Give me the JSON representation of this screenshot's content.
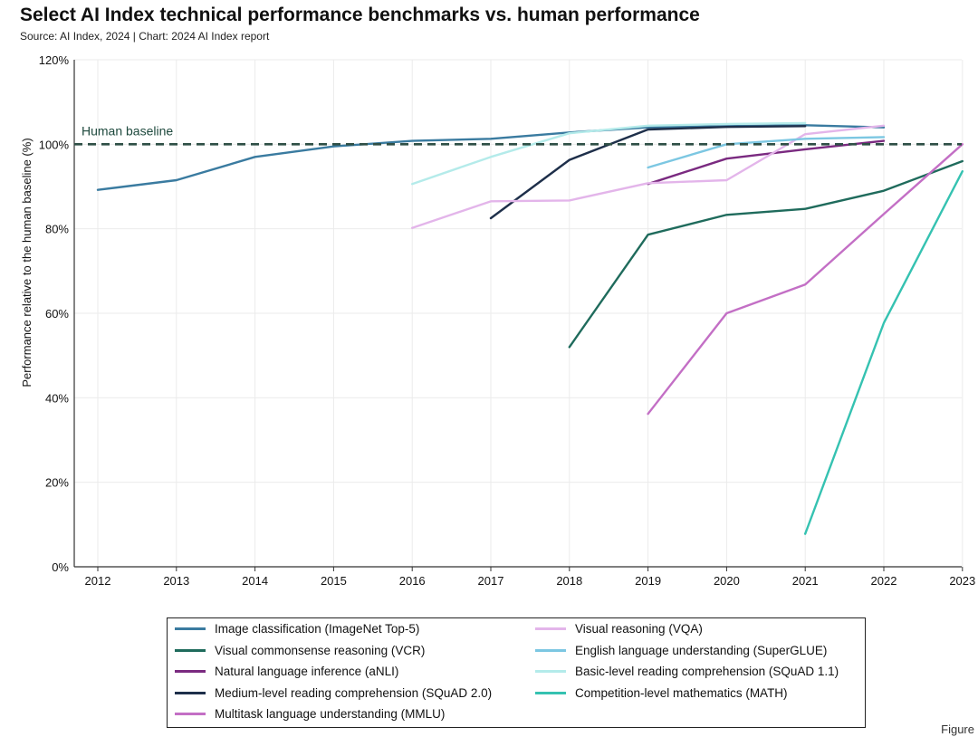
{
  "title": "Select AI Index technical performance benchmarks vs. human performance",
  "subtitle": "Source: AI Index, 2024 | Chart: 2024 AI Index report",
  "figure_label": "Figure",
  "chart_data": {
    "type": "line",
    "title": "Select AI Index technical performance benchmarks vs. human performance",
    "xlabel": "",
    "ylabel": "Performance relative to the human baseline (%)",
    "categories": [
      "2012",
      "2013",
      "2014",
      "2015",
      "2016",
      "2017",
      "2018",
      "2019",
      "2020",
      "2021",
      "2022",
      "2023"
    ],
    "y_ticks": [
      "0%",
      "20%",
      "40%",
      "60%",
      "80%",
      "100%",
      "120%"
    ],
    "ylim": [
      0,
      120
    ],
    "baseline": {
      "label": "Human baseline",
      "value": 100,
      "color": "#2f4f46"
    },
    "grid": true,
    "legend_position": "bottom",
    "series": [
      {
        "name": "Image classification (ImageNet Top-5)",
        "color": "#3a7ba0",
        "x": [
          2012,
          2013,
          2014,
          2015,
          2016,
          2017,
          2018,
          2019,
          2020,
          2021,
          2022
        ],
        "values": [
          89.2,
          91.5,
          97.0,
          99.5,
          100.8,
          101.3,
          102.8,
          104.0,
          104.3,
          104.5,
          104.0
        ]
      },
      {
        "name": "Visual commonsense reasoning (VCR)",
        "color": "#1f6b5c",
        "x": [
          2018,
          2019,
          2020,
          2021,
          2022,
          2023
        ],
        "values": [
          52.0,
          78.6,
          83.3,
          84.7,
          89.0,
          96.0
        ]
      },
      {
        "name": "Natural language inference (aNLI)",
        "color": "#7a2a80",
        "x": [
          2019,
          2020,
          2021,
          2022
        ],
        "values": [
          90.6,
          96.6,
          98.8,
          100.8
        ]
      },
      {
        "name": "Medium-level reading comprehension (SQuAD 2.0)",
        "color": "#1e2f4a",
        "x": [
          2017,
          2018,
          2019,
          2020,
          2021
        ],
        "values": [
          82.5,
          96.3,
          103.5,
          104.1,
          104.3
        ]
      },
      {
        "name": "Multitask language understanding (MMLU)",
        "color": "#c36fc5",
        "x": [
          2019,
          2020,
          2021,
          2022,
          2023
        ],
        "values": [
          36.2,
          60.0,
          66.8,
          83.5,
          100.0
        ]
      },
      {
        "name": "Visual reasoning (VQA)",
        "color": "#e3b5ea",
        "x": [
          2016,
          2017,
          2018,
          2019,
          2020,
          2021,
          2022
        ],
        "values": [
          80.2,
          86.5,
          86.7,
          90.8,
          91.5,
          102.4,
          104.4
        ]
      },
      {
        "name": "English language understanding (SuperGLUE)",
        "color": "#7cc7e2",
        "x": [
          2019,
          2020,
          2021,
          2022
        ],
        "values": [
          94.5,
          100.0,
          101.3,
          101.7
        ]
      },
      {
        "name": "Basic-level reading comprehension (SQuAD 1.1)",
        "color": "#b4ebea",
        "x": [
          2016,
          2017,
          2018,
          2019,
          2020,
          2021
        ],
        "values": [
          90.6,
          97.0,
          102.6,
          104.4,
          104.8,
          105.0
        ]
      },
      {
        "name": "Competition-level mathematics (MATH)",
        "color": "#35c2b1",
        "x": [
          2021,
          2022,
          2023
        ],
        "values": [
          7.8,
          57.7,
          93.6
        ]
      }
    ]
  }
}
